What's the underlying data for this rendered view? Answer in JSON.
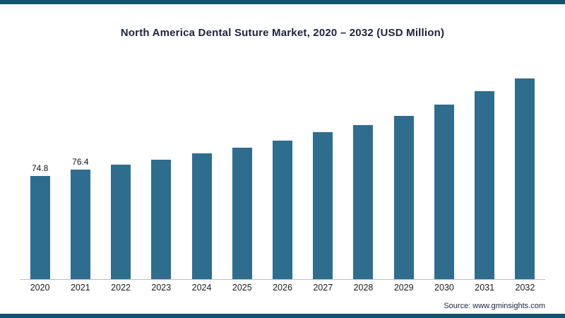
{
  "page": {
    "accent_color": "#12536d",
    "background_color": "#ffffff"
  },
  "chart_data": {
    "type": "bar",
    "title": "North America Dental Suture Market, 2020 – 2032 (USD Million)",
    "categories": [
      "2020",
      "2021",
      "2022",
      "2023",
      "2024",
      "2025",
      "2026",
      "2027",
      "2028",
      "2029",
      "2030",
      "2031",
      "2032"
    ],
    "values": [
      74.8,
      76.4,
      77.8,
      79.2,
      80.8,
      82.3,
      84.2,
      86.5,
      88.4,
      90.9,
      93.9,
      97.5,
      101.0
    ],
    "data_labels": [
      "74.8",
      "76.4",
      null,
      null,
      null,
      null,
      null,
      null,
      null,
      null,
      null,
      null,
      null
    ],
    "xlabel": "",
    "ylabel": "",
    "ylim": [
      47,
      104
    ],
    "grid": false,
    "legend": false,
    "bar_color": "#2e6d8e"
  },
  "footer": {
    "source": "Source: www.gminsights.com"
  }
}
